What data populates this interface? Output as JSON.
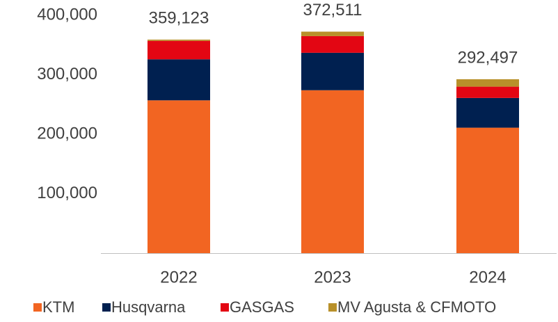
{
  "chart_data": {
    "type": "stacked_bar",
    "categories": [
      "2022",
      "2023",
      "2024"
    ],
    "series": [
      {
        "name": "KTM",
        "color": "#f26522",
        "values": [
          257000,
          274000,
          211000
        ]
      },
      {
        "name": "Husqvarna",
        "color": "#002050",
        "values": [
          69000,
          63000,
          50000
        ]
      },
      {
        "name": "GASGAS",
        "color": "#e30613",
        "values": [
          31000,
          28000,
          19000
        ]
      },
      {
        "name": "MV Agusta & CFMOTO",
        "color": "#b8902a",
        "values": [
          2123,
          7511,
          12497
        ]
      }
    ],
    "totals": [
      359123,
      372511,
      292497
    ],
    "totals_value_labels": [
      "359,123",
      "372,511",
      "292,497"
    ],
    "ylim": [
      0,
      400000
    ],
    "yticks": [
      {
        "value": 100000,
        "label": "100,000"
      },
      {
        "value": 200000,
        "label": "200,000"
      },
      {
        "value": 300000,
        "label": "300,000"
      },
      {
        "value": 400000,
        "label": "400,000"
      }
    ],
    "legend": "bottom"
  }
}
